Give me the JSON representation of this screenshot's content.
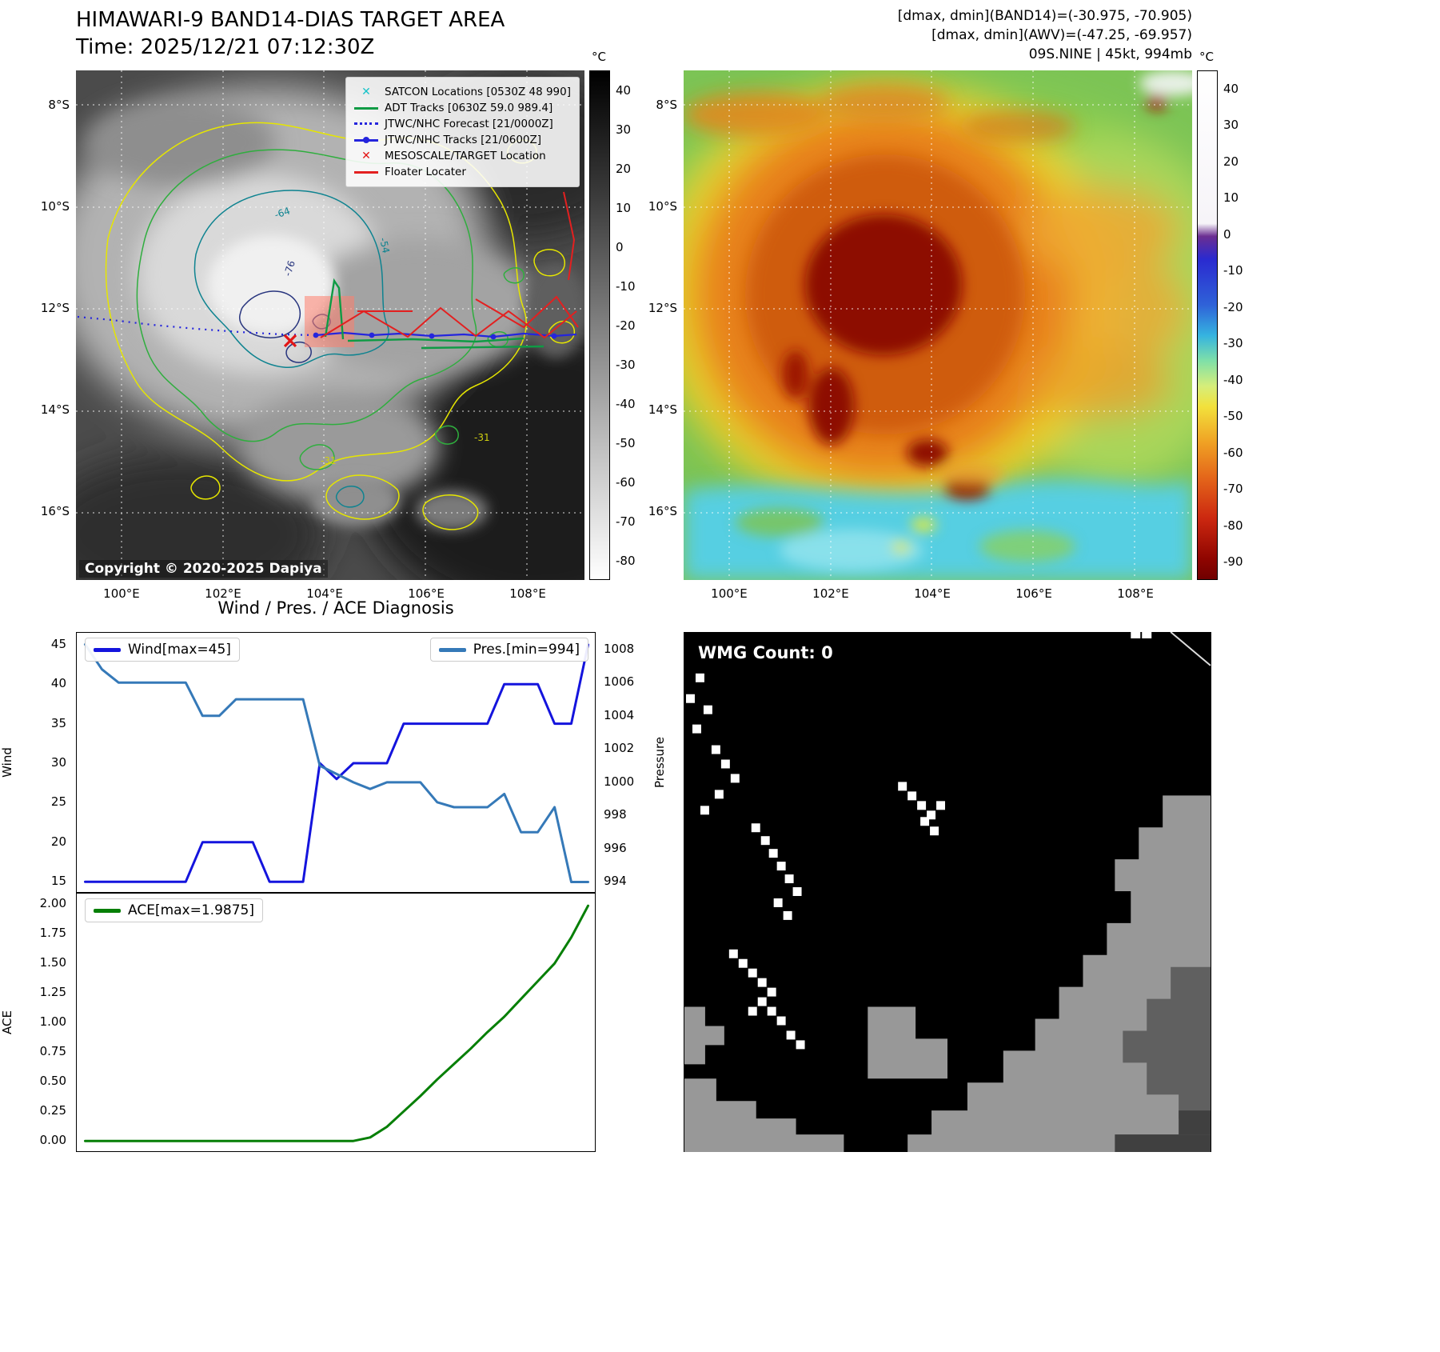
{
  "top_left": {
    "title": "HIMAWARI-9 BAND14-DIAS TARGET AREA",
    "subtitle": "Time: 2025/12/21 07:12:30Z",
    "copyright": "Copyright © 2020-2025 Dapiya",
    "colorbar": {
      "unit": "°C",
      "range": [
        45,
        -85
      ],
      "ticks": [
        40,
        30,
        20,
        10,
        0,
        -10,
        -20,
        -30,
        -40,
        -50,
        -60,
        -70,
        -80
      ]
    },
    "lat_ticks": [
      "8°S",
      "10°S",
      "12°S",
      "14°S",
      "16°S"
    ],
    "lon_ticks": [
      "100°E",
      "102°E",
      "104°E",
      "106°E",
      "108°E"
    ],
    "contour_labels": [
      "-64",
      "-54",
      "-76",
      "-31",
      "-31"
    ],
    "legend": [
      {
        "label": "SATCON Locations [0530Z 48 990]",
        "marker": "x",
        "color": "#17c3c9"
      },
      {
        "label": "ADT Tracks [0630Z 59.0 989.4]",
        "marker": "line",
        "color": "#0f9b45"
      },
      {
        "label": "JTWC/NHC Forecast [21/0000Z]",
        "marker": "dotted",
        "color": "#2525dd"
      },
      {
        "label": "JTWC/NHC Tracks [21/0600Z]",
        "marker": "line-dot",
        "color": "#2525dd"
      },
      {
        "label": "MESOSCALE/TARGET Location",
        "marker": "x",
        "color": "#e31515"
      },
      {
        "label": "Floater Locater",
        "marker": "line",
        "color": "#e32020"
      }
    ]
  },
  "top_right": {
    "header_lines": [
      "[dmax, dmin](BAND14)=(-30.975, -70.905)",
      "[dmax, dmin](AWV)=(-47.25, -69.957)",
      "09S.NINE | 45kt, 994mb"
    ],
    "colorbar": {
      "unit": "°C",
      "range": [
        45,
        -95
      ],
      "ticks": [
        40,
        30,
        20,
        10,
        0,
        -10,
        -20,
        -30,
        -40,
        -50,
        -60,
        -70,
        -80,
        -90
      ]
    },
    "lat_ticks": [
      "8°S",
      "10°S",
      "12°S",
      "14°S",
      "16°S"
    ],
    "lon_ticks": [
      "100°E",
      "102°E",
      "104°E",
      "106°E",
      "108°E"
    ]
  },
  "bottom_left": {
    "section_title": "Wind / Pres. / ACE Diagnosis"
  },
  "bottom_right": {
    "wmg_label": "WMG Count: 0"
  },
  "chart_data": [
    {
      "type": "line",
      "title": "Wind / Pres. / ACE Diagnosis",
      "x_range": [
        -0.5,
        30.5
      ],
      "grid": false,
      "series": [
        {
          "name": "Wind[max=45]",
          "color": "#1414dd",
          "axis": "left",
          "legend": "nw",
          "values": [
            15,
            15,
            15,
            15,
            15,
            15,
            15,
            20,
            20,
            20,
            20,
            15,
            15,
            15,
            30,
            28,
            30,
            30,
            30,
            35,
            35,
            35,
            35,
            35,
            35,
            40,
            40,
            40,
            35,
            35,
            45
          ]
        },
        {
          "name": "Pres.[min=994]",
          "color": "#3579b8",
          "axis": "right",
          "legend": "ne",
          "values": [
            1008.3,
            1006.8,
            1006,
            1006,
            1006,
            1006,
            1006,
            1004,
            1004,
            1005,
            1005,
            1005,
            1005,
            1005,
            1001,
            1000.5,
            1000,
            999.6,
            1000,
            1000,
            1000,
            998.8,
            998.5,
            998.5,
            998.5,
            999.3,
            997,
            997,
            998.5,
            994,
            994
          ]
        }
      ],
      "left_axis": {
        "label": "Wind",
        "ticks": [
          45,
          40,
          35,
          30,
          25,
          20,
          15
        ],
        "range": [
          13.5,
          46.5
        ]
      },
      "right_axis": {
        "label": "Pressure",
        "ticks": [
          1008,
          1006,
          1004,
          1002,
          1000,
          998,
          996,
          994
        ],
        "range": [
          993.3,
          1009.0
        ]
      }
    },
    {
      "type": "line",
      "title": "ACE",
      "x_range": [
        -0.5,
        30.5
      ],
      "grid": false,
      "series": [
        {
          "name": "ACE[max=1.9875]",
          "color": "#067f06",
          "axis": "left",
          "legend": "nw",
          "values": [
            0,
            0,
            0,
            0,
            0,
            0,
            0,
            0,
            0,
            0,
            0,
            0,
            0,
            0,
            0,
            0,
            0,
            0.03,
            0.12,
            0.25,
            0.38,
            0.52,
            0.65,
            0.78,
            0.92,
            1.05,
            1.2,
            1.35,
            1.5,
            1.72,
            1.9875
          ]
        }
      ],
      "left_axis": {
        "label": "ACE",
        "ticks": [
          "2.00",
          "1.75",
          "1.50",
          "1.25",
          "1.00",
          "0.75",
          "0.50",
          "0.25",
          "0.00"
        ],
        "range": [
          -0.1,
          2.09
        ]
      }
    }
  ]
}
